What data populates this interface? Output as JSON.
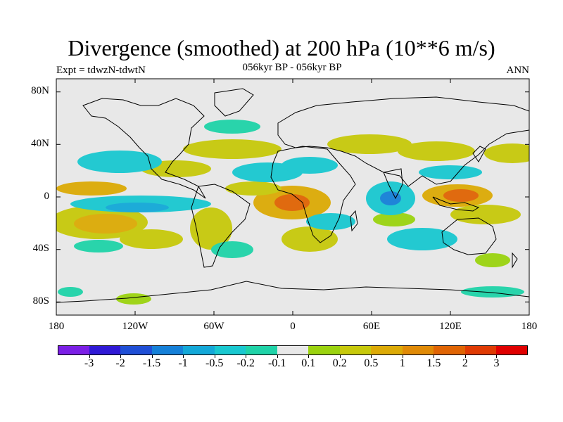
{
  "title": "Divergence (smoothed) at 200 hPa (10**6 m/s)",
  "subtitle_left": "Expt = tdwzN-tdwtN",
  "subtitle_center": "056kyr BP - 056kyr BP",
  "subtitle_right": "ANN",
  "lat_labels": [
    "80N",
    "40N",
    "0",
    "40S",
    "80S"
  ],
  "lon_labels": [
    "180",
    "120W",
    "60W",
    "0",
    "60E",
    "120E",
    "180"
  ],
  "colorbar": {
    "labels": [
      "-3",
      "-2",
      "-1.5",
      "-1",
      "-0.5",
      "-0.2",
      "-0.1",
      "0.1",
      "0.2",
      "0.5",
      "1",
      "1.5",
      "2",
      "3"
    ],
    "colors": [
      "#7b1fe6",
      "#2f19d6",
      "#1f4fd6",
      "#1580d8",
      "#13a8d8",
      "#19c8d0",
      "#1fd3a8",
      "#e8e8e8",
      "#9bd30f",
      "#c7c90b",
      "#dcaa06",
      "#e08a06",
      "#e06404",
      "#e03a03",
      "#e00000"
    ]
  },
  "colors": {
    "land": "#e8e8e8",
    "coast": "#000000"
  }
}
